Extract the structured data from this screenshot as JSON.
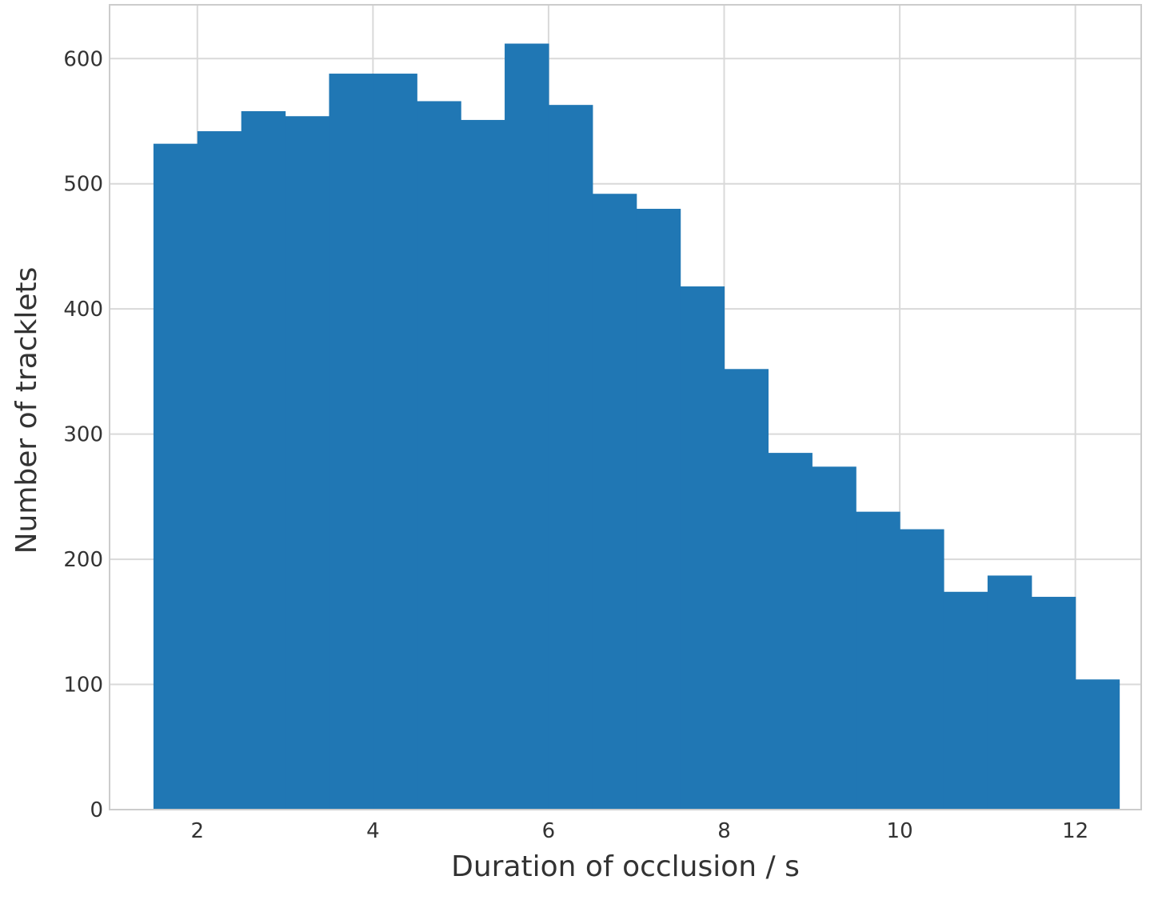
{
  "chart_data": {
    "type": "bar",
    "title": "",
    "xlabel": "Duration of occlusion / s",
    "ylabel": "Number of tracklets",
    "bin_edges": [
      1.5,
      2.0,
      2.5,
      3.0,
      3.5,
      4.0,
      4.5,
      5.0,
      5.5,
      6.0,
      6.5,
      7.0,
      7.5,
      8.0,
      8.5,
      9.0,
      9.5,
      10.0,
      10.5,
      11.0,
      11.5,
      12.0,
      12.5
    ],
    "values": [
      532,
      542,
      558,
      554,
      588,
      588,
      566,
      551,
      612,
      563,
      492,
      480,
      418,
      352,
      285,
      274,
      238,
      224,
      174,
      187,
      170,
      104
    ],
    "xlim": [
      1.0,
      12.75
    ],
    "ylim": [
      0,
      643
    ],
    "xticks": [
      2,
      4,
      6,
      8,
      10,
      12
    ],
    "xtick_labels": [
      "2",
      "4",
      "6",
      "8",
      "10",
      "12"
    ],
    "yticks": [
      0,
      100,
      200,
      300,
      400,
      500,
      600
    ],
    "ytick_labels": [
      "0",
      "100",
      "200",
      "300",
      "400",
      "500",
      "600"
    ],
    "grid": true,
    "colors": {
      "bar": "#2077b4",
      "grid": "#d9d9d9",
      "axes_edge": "#cccccc",
      "text": "#333333"
    }
  }
}
